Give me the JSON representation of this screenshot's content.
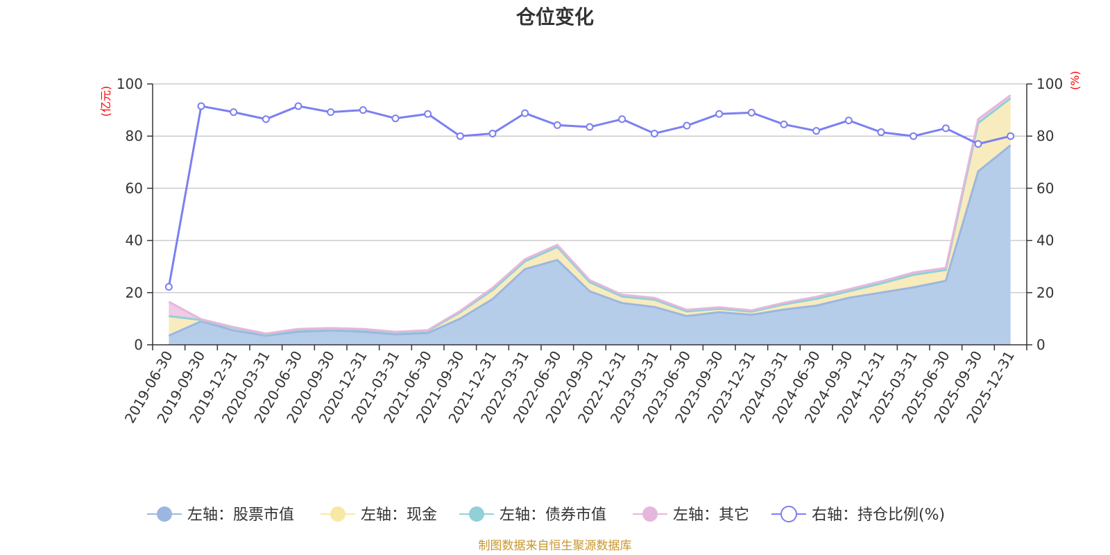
{
  "chart_data": {
    "type": "area",
    "title": "仓位变化",
    "left_axis_unit": "(亿元)",
    "right_axis_unit": "(%)",
    "categories": [
      "2019-06-30",
      "2019-09-30",
      "2019-12-31",
      "2020-03-31",
      "2020-06-30",
      "2020-09-30",
      "2020-12-31",
      "2021-03-31",
      "2021-06-30",
      "2021-09-30",
      "2021-12-31",
      "2022-03-31",
      "2022-06-30",
      "2022-09-30",
      "2022-12-31",
      "2023-03-31",
      "2023-06-30",
      "2023-09-30",
      "2023-12-31",
      "2024-03-31",
      "2024-06-30",
      "2024-09-30",
      "2024-12-31",
      "2025-03-31",
      "2025-06-30",
      "2025-09-30",
      "2025-12-31"
    ],
    "left_ylim": [
      0,
      100
    ],
    "right_ylim": [
      0,
      100
    ],
    "left_ticks": [
      "0",
      "20",
      "40",
      "60",
      "80",
      "100"
    ],
    "right_ticks": [
      "0",
      "20",
      "40",
      "60",
      "80",
      "100"
    ],
    "grid": true,
    "legend_position": "bottom",
    "series": [
      {
        "name": "左轴：股票市值",
        "axis": "left",
        "stack": true,
        "color": "#9bb7e0",
        "fill": "#b6cdea",
        "values": [
          3.5,
          9,
          5.5,
          3.5,
          5,
          5.5,
          5,
          4,
          4.5,
          10,
          17.5,
          29,
          32.5,
          20.5,
          16,
          14.5,
          11,
          12.5,
          11.5,
          13.5,
          15,
          18,
          20,
          22,
          24.5,
          66.5,
          76.5
        ]
      },
      {
        "name": "左轴：现金",
        "axis": "left",
        "stack": true,
        "color": "#f7e8a3",
        "fill": "#f8ebbd",
        "values": [
          7.5,
          0.5,
          1.0,
          0.6,
          0.8,
          0.6,
          0.8,
          0.7,
          0.8,
          2.5,
          3.5,
          3.0,
          5.0,
          3.5,
          2.5,
          2.8,
          1.8,
          1.3,
          1.2,
          2.0,
          2.6,
          2.5,
          3.5,
          4.8,
          4.2,
          18.5,
          18.0
        ]
      },
      {
        "name": "左轴：债券市值",
        "axis": "left",
        "stack": true,
        "color": "#8fd1d6",
        "fill": "#b3e2e5",
        "values": [
          0,
          0,
          0,
          0,
          0,
          0,
          0,
          0,
          0,
          0,
          0,
          0,
          0,
          0,
          0,
          0,
          0,
          0,
          0,
          0,
          0,
          0,
          0,
          0,
          0,
          0,
          0
        ]
      },
      {
        "name": "左轴：其它",
        "axis": "left",
        "stack": true,
        "color": "#e6b7dc",
        "fill": "#efcbe7",
        "values": [
          5.5,
          0.3,
          0.3,
          0.2,
          0.3,
          0.3,
          0.3,
          0.3,
          0.3,
          0.5,
          0.8,
          0.8,
          0.8,
          0.8,
          0.7,
          0.7,
          0.6,
          0.6,
          0.5,
          0.6,
          0.8,
          0.8,
          0.8,
          0.9,
          0.8,
          1.5,
          1.2
        ]
      },
      {
        "name": "右轴：持仓比例(%)",
        "axis": "right",
        "stack": false,
        "color": "#7b7ff0",
        "fill": "none",
        "values": [
          22.2,
          91.5,
          89.2,
          86.5,
          91.5,
          89.2,
          90.0,
          86.8,
          88.5,
          80.0,
          81.0,
          88.8,
          84.2,
          83.5,
          86.5,
          81.0,
          84.0,
          88.5,
          89.0,
          84.5,
          82.0,
          86.0,
          81.5,
          80.0,
          83.0,
          77.0,
          80.0
        ]
      }
    ]
  },
  "footer": {
    "source": "制图数据来自恒生聚源数据库"
  }
}
